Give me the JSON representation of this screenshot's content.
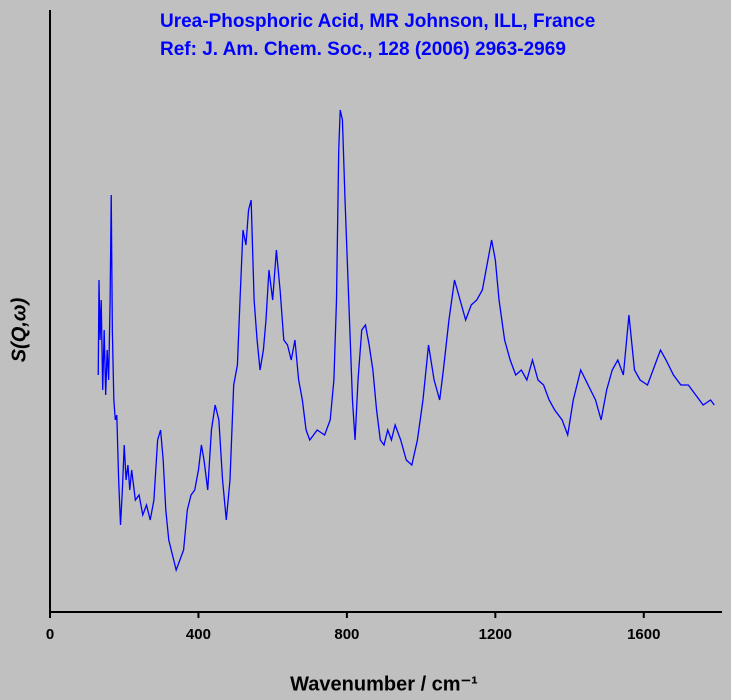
{
  "chart_data": {
    "type": "line",
    "title": "Urea-Phosphoric Acid, MR Johnson, ILL, France",
    "subtitle": "Ref: J. Am. Chem. Soc., 128 (2006) 2963-2969",
    "xlabel": "Wavenumber / cm⁻¹",
    "ylabel": "S(Q,ω)",
    "xlim": [
      0,
      1800
    ],
    "xticks": [
      0,
      400,
      800,
      1200,
      1600
    ],
    "ylim": [
      0,
      602
    ],
    "x": [
      130,
      132,
      135,
      138,
      142,
      146,
      150,
      154,
      158,
      162,
      165,
      168,
      172,
      176,
      180,
      185,
      190,
      195,
      200,
      205,
      210,
      215,
      220,
      230,
      240,
      250,
      260,
      270,
      280,
      290,
      298,
      305,
      312,
      320,
      330,
      340,
      350,
      360,
      370,
      380,
      390,
      400,
      408,
      415,
      425,
      435,
      445,
      455,
      465,
      475,
      485,
      495,
      505,
      512,
      520,
      528,
      535,
      542,
      550,
      558,
      566,
      575,
      582,
      590,
      600,
      610,
      620,
      630,
      640,
      650,
      660,
      670,
      680,
      690,
      700,
      720,
      740,
      755,
      765,
      772,
      778,
      782,
      788,
      795,
      805,
      815,
      822,
      830,
      840,
      850,
      860,
      870,
      880,
      890,
      900,
      910,
      920,
      930,
      945,
      960,
      975,
      990,
      1005,
      1020,
      1035,
      1050,
      1060,
      1075,
      1090,
      1105,
      1120,
      1135,
      1150,
      1165,
      1180,
      1190,
      1200,
      1210,
      1225,
      1240,
      1255,
      1270,
      1285,
      1300,
      1315,
      1330,
      1345,
      1360,
      1380,
      1395,
      1410,
      1430,
      1450,
      1470,
      1485,
      1500,
      1515,
      1530,
      1545,
      1560,
      1575,
      1590,
      1610,
      1630,
      1645,
      1660,
      1680,
      1700,
      1720,
      1740,
      1760,
      1780,
      1790
    ],
    "series": [
      {
        "color": "#0000ff",
        "values": [
          237,
          332,
          272,
          312,
          222,
          282,
          217,
          262,
          232,
          312,
          417,
          282,
          212,
          192,
          197,
          132,
          87,
          122,
          167,
          132,
          147,
          122,
          142,
          112,
          117,
          97,
          107,
          92,
          112,
          172,
          182,
          152,
          102,
          72,
          57,
          42,
          52,
          62,
          102,
          117,
          122,
          142,
          167,
          152,
          122,
          182,
          207,
          192,
          132,
          92,
          132,
          227,
          247,
          312,
          382,
          367,
          402,
          412,
          312,
          272,
          242,
          262,
          292,
          342,
          312,
          362,
          322,
          272,
          267,
          252,
          272,
          232,
          212,
          182,
          172,
          182,
          177,
          192,
          232,
          312,
          462,
          502,
          492,
          412,
          312,
          212,
          172,
          232,
          282,
          287,
          267,
          242,
          202,
          172,
          167,
          182,
          172,
          187,
          172,
          152,
          147,
          172,
          212,
          267,
          232,
          212,
          242,
          292,
          332,
          312,
          292,
          307,
          312,
          322,
          352,
          372,
          352,
          312,
          272,
          252,
          237,
          242,
          232,
          252,
          232,
          227,
          212,
          202,
          192,
          177,
          212,
          242,
          227,
          212,
          192,
          222,
          242,
          252,
          237,
          297,
          242,
          232,
          227,
          247,
          262,
          252,
          237,
          227,
          227,
          217,
          207,
          212,
          207
        ]
      }
    ]
  }
}
